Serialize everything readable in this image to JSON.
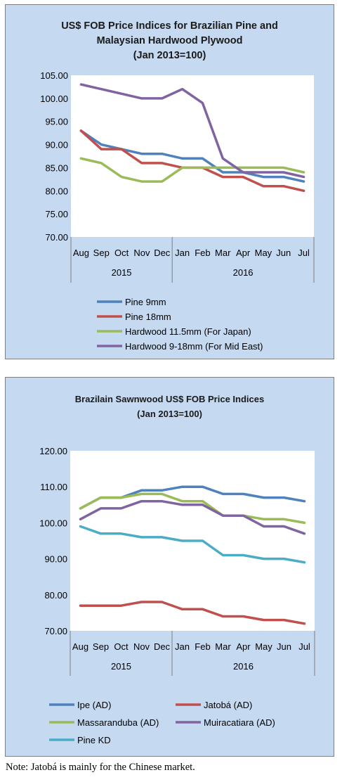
{
  "chart_data": [
    {
      "type": "line",
      "title_lines": [
        "US$ FOB Price Indices for Brazilian Pine and",
        "Malaysian Hardwood Plywood",
        "(Jan 2013=100)"
      ],
      "categories": [
        "Aug",
        "Sep",
        "Oct",
        "Nov",
        "Dec",
        "Jan",
        "Feb",
        "Mar",
        "Apr",
        "May",
        "Jun",
        "Jul"
      ],
      "year_groups": [
        {
          "label": "2015",
          "span": 5
        },
        {
          "label": "2016",
          "span": 7
        }
      ],
      "ylim": [
        70,
        105
      ],
      "yticks": [
        70,
        75,
        80,
        85,
        90,
        95,
        100,
        105
      ],
      "ytick_labels": [
        "70.00",
        "75.00",
        "80.00",
        "85.00",
        "90.00",
        "95.00",
        "100.00",
        "105.00"
      ],
      "grid": false,
      "legend_position": "bottom",
      "series": [
        {
          "name": "Pine 9mm",
          "color": "#4f81bd",
          "values": [
            93,
            90,
            89,
            88,
            88,
            87,
            87,
            84,
            84,
            83,
            83,
            82
          ]
        },
        {
          "name": "Pine 18mm",
          "color": "#c0504d",
          "values": [
            93,
            89,
            89,
            86,
            86,
            85,
            85,
            83,
            83,
            81,
            81,
            80
          ]
        },
        {
          "name": "Hardwood 11.5mm (For Japan)",
          "color": "#9bbb59",
          "values": [
            87,
            86,
            83,
            82,
            82,
            85,
            85,
            85,
            85,
            85,
            85,
            84
          ]
        },
        {
          "name": "Hardwood 9-18mm (For Mid East)",
          "color": "#8064a2",
          "values": [
            103,
            102,
            101,
            100,
            100,
            102,
            99,
            87,
            84,
            84,
            84,
            83
          ]
        }
      ]
    },
    {
      "type": "line",
      "title_lines": [
        "Brazilain Sawnwood US$ FOB Price Indices",
        "(Jan 2013=100)"
      ],
      "categories": [
        "Aug",
        "Sep",
        "Oct",
        "Nov",
        "Dec",
        "Jan",
        "Feb",
        "Mar",
        "Apr",
        "May",
        "Jun",
        "Jul"
      ],
      "year_groups": [
        {
          "label": "2015",
          "span": 5
        },
        {
          "label": "2016",
          "span": 7
        }
      ],
      "ylim": [
        70,
        120
      ],
      "yticks": [
        70,
        80,
        90,
        100,
        110,
        120
      ],
      "ytick_labels": [
        "70.00",
        "80.00",
        "90.00",
        "100.00",
        "110.00",
        "120.00"
      ],
      "grid": false,
      "legend_position": "bottom",
      "series": [
        {
          "name": "Ipe (AD)",
          "color": "#4f81bd",
          "values": [
            104,
            107,
            107,
            109,
            109,
            110,
            110,
            108,
            108,
            107,
            107,
            106
          ]
        },
        {
          "name": "Jatobá (AD)",
          "color": "#c0504d",
          "values": [
            77,
            77,
            77,
            78,
            78,
            76,
            76,
            74,
            74,
            73,
            73,
            72
          ]
        },
        {
          "name": "Massaranduba (AD)",
          "color": "#9bbb59",
          "values": [
            104,
            107,
            107,
            108,
            108,
            106,
            106,
            102,
            102,
            101,
            101,
            100
          ]
        },
        {
          "name": "Muiracatiara (AD)",
          "color": "#8064a2",
          "values": [
            101,
            104,
            104,
            106,
            106,
            105,
            105,
            102,
            102,
            99,
            99,
            97
          ]
        },
        {
          "name": "Pine KD",
          "color": "#4bacc6",
          "values": [
            99,
            97,
            97,
            96,
            96,
            95,
            95,
            91,
            91,
            90,
            90,
            89
          ]
        }
      ]
    }
  ],
  "note": "Note: Jatobá is mainly for the Chinese market."
}
